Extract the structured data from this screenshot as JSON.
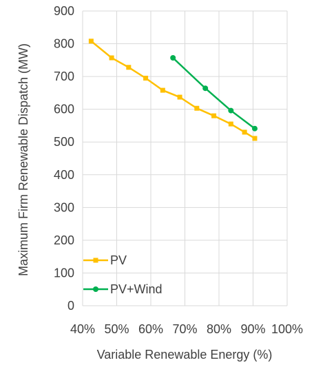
{
  "chart_data": {
    "type": "line",
    "xlabel": "Variable Renewable Energy (%)",
    "ylabel": "Maximum Firm Renewable Dispatch (MW)",
    "xlim": [
      40,
      100
    ],
    "ylim": [
      0,
      900
    ],
    "x_ticks": [
      "40%",
      "50%",
      "60%",
      "70%",
      "80%",
      "90%",
      "100%"
    ],
    "y_ticks": [
      "0",
      "100",
      "200",
      "300",
      "400",
      "500",
      "600",
      "700",
      "800",
      "900"
    ],
    "grid": "both",
    "legend_position": "bottom-left",
    "series": [
      {
        "name": "PV",
        "color": "#FFC000",
        "marker": "square",
        "x": [
          42.5,
          48.5,
          53.5,
          58.5,
          63.5,
          68.5,
          73.5,
          78.5,
          83.5,
          87.5,
          90.5
        ],
        "y": [
          808,
          757,
          728,
          695,
          658,
          637,
          603,
          580,
          555,
          530,
          511
        ]
      },
      {
        "name": "PV+Wind",
        "color": "#00B050",
        "marker": "circle",
        "x": [
          66.5,
          76.0,
          83.5,
          90.5
        ],
        "y": [
          757,
          664,
          596,
          541
        ]
      }
    ]
  }
}
